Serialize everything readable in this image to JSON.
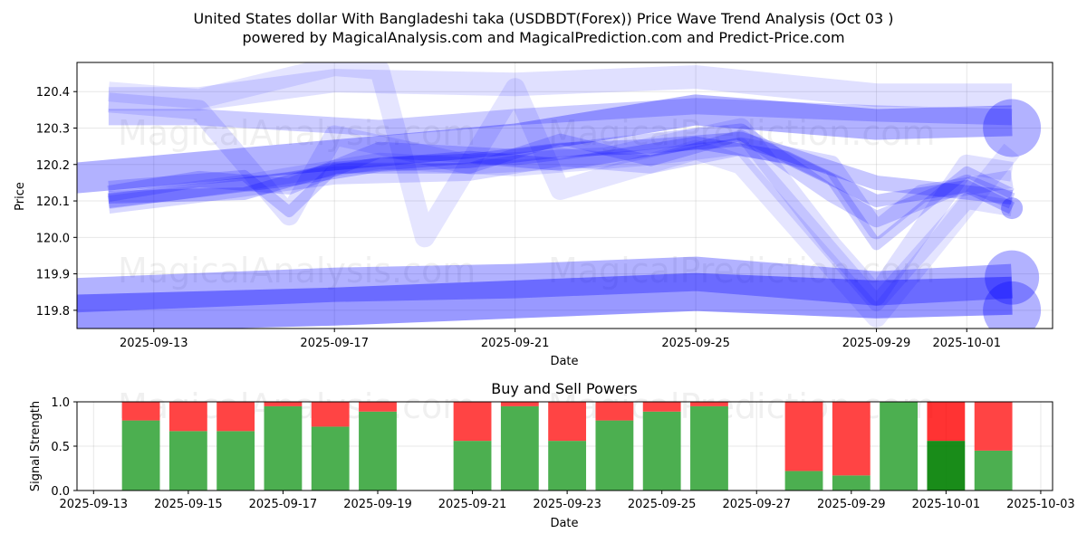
{
  "title_line1": "United States dollar With Bangladeshi taka (USDBDT(Forex)) Price Wave Trend Analysis (Oct 03 )",
  "title_line2": "powered by MagicalAnalysis.com and MagicalPrediction.com and Predict-Price.com",
  "watermarks": [
    "MagicalAnalysis.com",
    "MagicalPrediction.com"
  ],
  "colors": {
    "band": "#0000ff",
    "buy": "#4caf50",
    "sell": "#ff4444",
    "buy_strong": "#008000",
    "sell_strong": "#ff0000"
  },
  "chart_data": [
    {
      "type": "line",
      "name": "price-wave-chart",
      "xlabel": "Date",
      "ylabel": "Price",
      "x_range": [
        "2025-09-11",
        "2025-10-03"
      ],
      "ylim": [
        119.75,
        120.48
      ],
      "x_ticks": [
        "2025-09-13",
        "2025-09-17",
        "2025-09-21",
        "2025-09-25",
        "2025-09-29",
        "2025-10-01"
      ],
      "y_ticks": [
        "119.8",
        "119.9",
        "120.0",
        "120.1",
        "120.2",
        "120.3",
        "120.4"
      ],
      "grid": true,
      "series": [
        {
          "name": "upper-band-a",
          "width": 34,
          "opacity": 0.3,
          "x": [
            "2025-09-11",
            "2025-09-21",
            "2025-09-25",
            "2025-09-29",
            "2025-10-02"
          ],
          "y": [
            120.16,
            120.27,
            120.35,
            120.31,
            120.32
          ]
        },
        {
          "name": "upper-band-b",
          "width": 26,
          "opacity": 0.12,
          "x": [
            "2025-09-12",
            "2025-09-14",
            "2025-09-17",
            "2025-09-21",
            "2025-09-25",
            "2025-09-29",
            "2025-10-02"
          ],
          "y": [
            120.38,
            120.38,
            120.43,
            120.42,
            120.44,
            120.39,
            120.39
          ]
        },
        {
          "name": "upper-band-c",
          "width": 18,
          "opacity": 0.2,
          "x": [
            "2025-09-12",
            "2025-09-14",
            "2025-09-18",
            "2025-09-21",
            "2025-09-25",
            "2025-09-29",
            "2025-10-02"
          ],
          "y": [
            120.33,
            120.33,
            120.3,
            120.33,
            120.36,
            120.34,
            120.33
          ]
        },
        {
          "name": "lower-band-a",
          "width": 38,
          "opacity": 0.3,
          "x": [
            "2025-09-11",
            "2025-09-17",
            "2025-09-21",
            "2025-09-25",
            "2025-09-29",
            "2025-10-02"
          ],
          "y": [
            119.84,
            119.87,
            119.88,
            119.9,
            119.86,
            119.88
          ]
        },
        {
          "name": "lower-band-b",
          "width": 42,
          "opacity": 0.4,
          "x": [
            "2025-09-11",
            "2025-09-17",
            "2025-09-21",
            "2025-09-25",
            "2025-09-29",
            "2025-10-02"
          ],
          "y": [
            119.79,
            119.81,
            119.83,
            119.85,
            119.83,
            119.84
          ]
        },
        {
          "name": "wave-1",
          "width": 16,
          "opacity": 0.22,
          "x": [
            "2025-09-12",
            "2025-09-14",
            "2025-09-16",
            "2025-09-18",
            "2025-09-20",
            "2025-09-22",
            "2025-09-24",
            "2025-09-26",
            "2025-09-29",
            "2025-10-02"
          ],
          "y": [
            120.1,
            120.13,
            120.16,
            120.2,
            120.21,
            120.24,
            120.25,
            120.27,
            120.15,
            120.11
          ]
        },
        {
          "name": "wave-2",
          "width": 14,
          "opacity": 0.22,
          "x": [
            "2025-09-12",
            "2025-09-15",
            "2025-09-17",
            "2025-09-20",
            "2025-09-22",
            "2025-09-25",
            "2025-09-27",
            "2025-09-29",
            "2025-10-01",
            "2025-10-02"
          ],
          "y": [
            120.11,
            120.12,
            120.19,
            120.22,
            120.2,
            120.26,
            120.22,
            120.1,
            120.14,
            120.08
          ]
        },
        {
          "name": "wave-3",
          "width": 18,
          "opacity": 0.18,
          "x": [
            "2025-09-12",
            "2025-09-14",
            "2025-09-16",
            "2025-09-18",
            "2025-09-21",
            "2025-09-23",
            "2025-09-26",
            "2025-09-28",
            "2025-09-29",
            "2025-10-01",
            "2025-10-02"
          ],
          "y": [
            120.12,
            120.16,
            120.14,
            120.24,
            120.22,
            120.25,
            120.29,
            120.12,
            120.05,
            120.15,
            120.1
          ]
        },
        {
          "name": "wave-4",
          "width": 12,
          "opacity": 0.18,
          "x": [
            "2025-09-12",
            "2025-09-15",
            "2025-09-16",
            "2025-09-17",
            "2025-09-20",
            "2025-09-22",
            "2025-09-24",
            "2025-09-26",
            "2025-09-28",
            "2025-09-29",
            "2025-10-01",
            "2025-10-02"
          ],
          "y": [
            120.14,
            120.17,
            120.07,
            120.19,
            120.19,
            120.27,
            120.21,
            120.28,
            120.16,
            119.98,
            120.18,
            120.12
          ]
        },
        {
          "name": "wave-5",
          "width": 20,
          "opacity": 0.15,
          "x": [
            "2025-09-12",
            "2025-09-14",
            "2025-09-17",
            "2025-09-20",
            "2025-09-22",
            "2025-09-24",
            "2025-09-26",
            "2025-09-28",
            "2025-09-29",
            "2025-09-30",
            "2025-10-02"
          ],
          "y": [
            120.09,
            120.12,
            120.17,
            120.18,
            120.22,
            120.2,
            120.25,
            120.2,
            120.02,
            120.12,
            120.16
          ]
        },
        {
          "name": "wave-spike-a",
          "width": 22,
          "opacity": 0.1,
          "x": [
            "2025-09-12",
            "2025-09-14",
            "2025-09-17",
            "2025-09-18",
            "2025-09-19",
            "2025-09-21",
            "2025-09-22",
            "2025-09-25",
            "2025-09-26",
            "2025-09-29",
            "2025-10-02"
          ],
          "y": [
            120.4,
            120.38,
            120.47,
            120.46,
            120.0,
            120.41,
            120.13,
            120.24,
            120.2,
            119.78,
            120.24
          ]
        },
        {
          "name": "wave-spike-b",
          "width": 22,
          "opacity": 0.12,
          "x": [
            "2025-09-12",
            "2025-09-14",
            "2025-09-16",
            "2025-09-17",
            "2025-09-20",
            "2025-09-23",
            "2025-09-26",
            "2025-09-28",
            "2025-09-29",
            "2025-10-01",
            "2025-10-02"
          ],
          "y": [
            120.37,
            120.35,
            120.06,
            120.28,
            120.2,
            120.22,
            120.3,
            119.98,
            119.84,
            120.2,
            120.18
          ]
        },
        {
          "name": "wave-spike-c",
          "width": 18,
          "opacity": 0.12,
          "x": [
            "2025-09-12",
            "2025-09-15",
            "2025-09-18",
            "2025-09-21",
            "2025-09-24",
            "2025-09-26",
            "2025-09-29",
            "2025-10-01",
            "2025-10-02"
          ],
          "y": [
            120.1,
            120.15,
            120.21,
            120.19,
            120.22,
            120.25,
            119.82,
            120.1,
            120.08
          ]
        }
      ],
      "end_markers": [
        {
          "x": "2025-10-02",
          "y": 120.3,
          "r": 32
        },
        {
          "x": "2025-10-02",
          "y": 119.89,
          "r": 30
        },
        {
          "x": "2025-10-02",
          "y": 119.8,
          "r": 32
        },
        {
          "x": "2025-10-02",
          "y": 120.08,
          "r": 12
        }
      ]
    },
    {
      "type": "bar",
      "name": "buy-sell-powers-chart",
      "title": "Buy and Sell Powers",
      "xlabel": "Date",
      "ylabel": "Signal Strength",
      "x_range": [
        "2025-09-13",
        "2025-10-03"
      ],
      "ylim": [
        0,
        1.0
      ],
      "x_ticks": [
        "2025-09-13",
        "2025-09-15",
        "2025-09-17",
        "2025-09-19",
        "2025-09-21",
        "2025-09-23",
        "2025-09-25",
        "2025-09-27",
        "2025-09-29",
        "2025-10-01",
        "2025-10-03"
      ],
      "y_ticks": [
        "0.0",
        "0.5",
        "1.0"
      ],
      "grid": true,
      "categories": [
        "2025-09-14",
        "2025-09-15",
        "2025-09-16",
        "2025-09-17",
        "2025-09-18",
        "2025-09-19",
        "2025-09-21",
        "2025-09-22",
        "2025-09-23",
        "2025-09-24",
        "2025-09-25",
        "2025-09-26",
        "2025-09-28",
        "2025-09-29",
        "2025-09-30",
        "2025-10-01",
        "2025-10-02"
      ],
      "series": [
        {
          "name": "Buy",
          "values": [
            0.79,
            0.67,
            0.67,
            0.95,
            0.72,
            0.89,
            0.56,
            0.95,
            0.56,
            0.79,
            0.89,
            0.95,
            0.22,
            0.17,
            1.0,
            0.56,
            0.45
          ]
        },
        {
          "name": "Sell",
          "values": [
            0.21,
            0.33,
            0.33,
            0.05,
            0.28,
            0.11,
            0.44,
            0.05,
            0.44,
            0.21,
            0.11,
            0.05,
            0.78,
            0.83,
            0.0,
            0.44,
            0.55
          ]
        }
      ],
      "highlight_category": "2025-10-01"
    }
  ]
}
